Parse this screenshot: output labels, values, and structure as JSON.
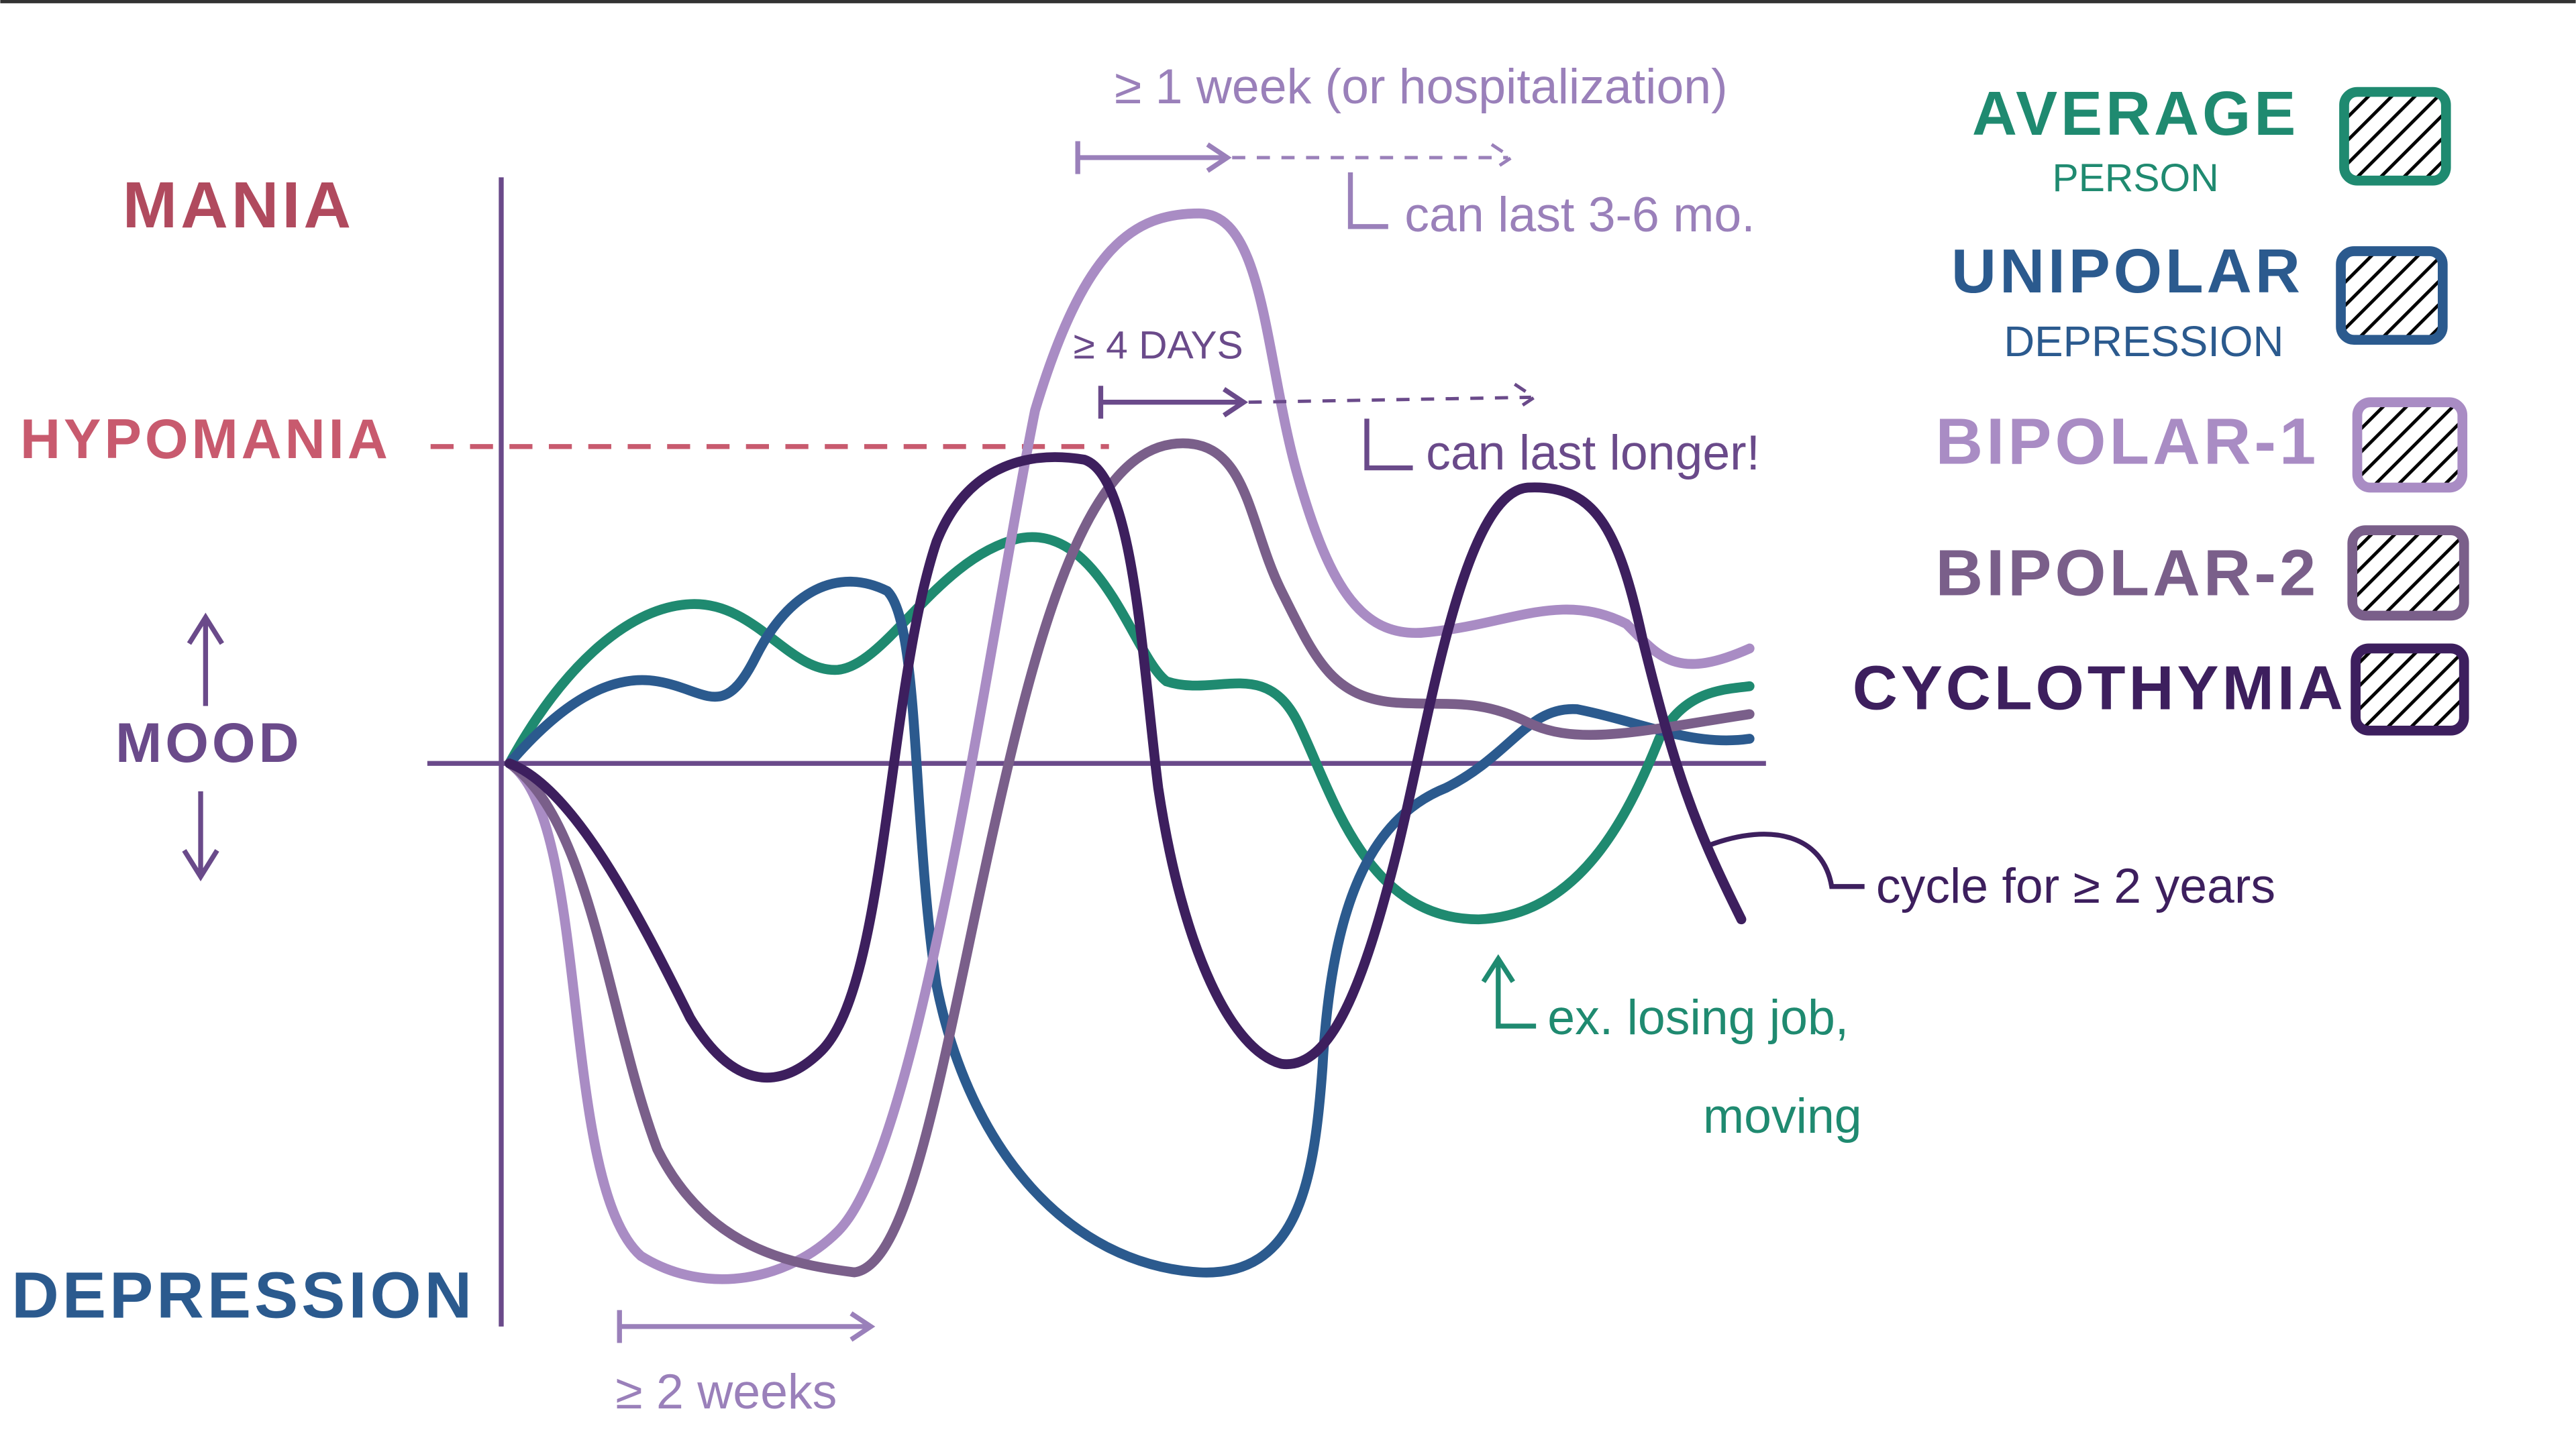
{
  "axis_labels": {
    "mania": "MANIA",
    "hypomania": "HYPOMANIA",
    "mood": "MOOD",
    "depression": "DEPRESSION"
  },
  "legend": [
    {
      "name": "AVERAGE",
      "sub": "PERSON"
    },
    {
      "name": "UNIPOLAR",
      "sub": "DEPRESSION"
    },
    {
      "name": "BIPOLAR-1"
    },
    {
      "name": "BIPOLAR-2"
    },
    {
      "name": "CYCLOTHYMIA"
    }
  ],
  "annotations": {
    "one_week": "≥ 1 week (or hospitalization)",
    "three_six": "can last 3-6 mo.",
    "four_days": "≥ 4 DAYS",
    "longer": "can last longer!",
    "two_weeks": "≥ 2 weeks",
    "two_years": "cycle for ≥ 2 years",
    "job": "ex. losing job,",
    "moving": "moving"
  }
}
